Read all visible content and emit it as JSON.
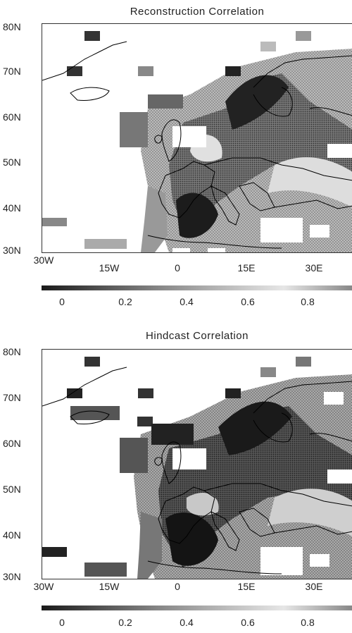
{
  "panels": [
    {
      "title": "Reconstruction Correlation",
      "lat_labels": [
        "80N",
        "70N",
        "60N",
        "50N",
        "40N",
        "30N"
      ],
      "lon_labels": [
        "30W",
        "15W",
        "0",
        "15E",
        "30E"
      ],
      "colorbar_labels": [
        "0",
        "0.2",
        "0.4",
        "0.6",
        "0.8"
      ]
    },
    {
      "title": "Hindcast Correlation",
      "lat_labels": [
        "80N",
        "70N",
        "60N",
        "50N",
        "40N",
        "30N"
      ],
      "lon_labels": [
        "30W",
        "15W",
        "0",
        "15E",
        "30E"
      ],
      "colorbar_labels": [
        "0",
        "0.2",
        "0.4",
        "0.6",
        "0.8"
      ]
    }
  ],
  "colors": {
    "low": "#1a1a1a",
    "mid": "#8c8c8c",
    "high": "#e6e6e6",
    "land_line": "#000000"
  }
}
